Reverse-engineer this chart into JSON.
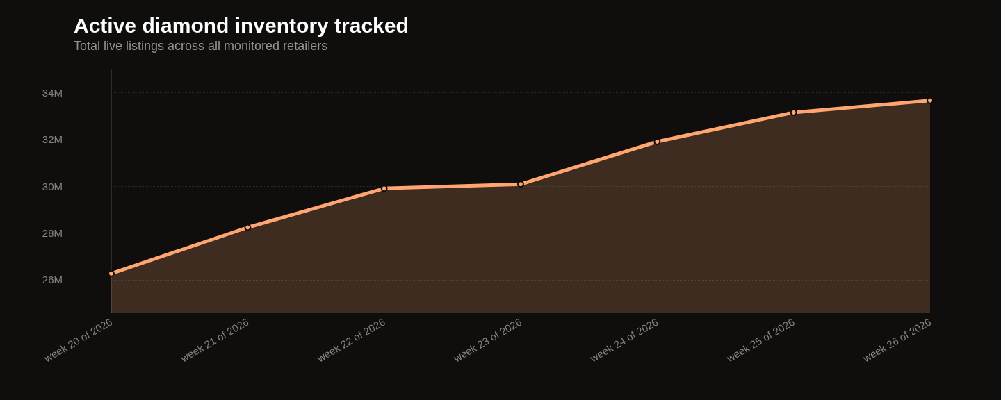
{
  "chart_data": {
    "type": "area",
    "title": "Active diamond inventory tracked",
    "subtitle": "Total live listings across all monitored retailers",
    "categories": [
      "week 20 of 2026",
      "week 21 of 2026",
      "week 22 of 2026",
      "week 23 of 2026",
      "week 24 of 2026",
      "week 25 of 2026",
      "week 26 of 2026"
    ],
    "series": [
      {
        "color": "#ffa570",
        "values": [
          26.27,
          28.24,
          29.91,
          30.09,
          31.91,
          33.16,
          33.67
        ]
      }
    ],
    "ylim": [
      24.6,
      35
    ],
    "yticks": [
      {
        "value": 26,
        "label": "26M"
      },
      {
        "value": 28,
        "label": "28M"
      },
      {
        "value": 30,
        "label": "30M"
      },
      {
        "value": 32,
        "label": "32M"
      },
      {
        "value": 34,
        "label": "34M"
      }
    ],
    "grid": "y",
    "marker": "circle",
    "line_style": "solid"
  }
}
